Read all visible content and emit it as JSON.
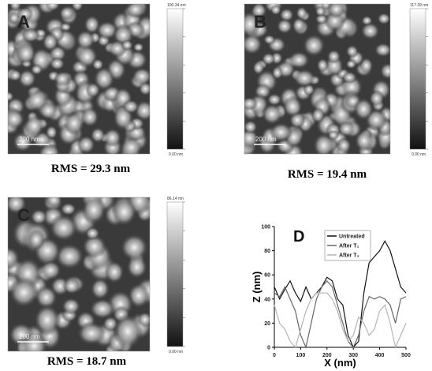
{
  "panels": [
    {
      "label": "A",
      "scale_bar": "200 nm",
      "colorbar_max": "100.34 nm",
      "colorbar_min": "0.00 nm",
      "rms": "RMS = 29.3 nm"
    },
    {
      "label": "B",
      "scale_bar": "200 nm",
      "colorbar_max": "117.39 nm",
      "colorbar_min": "0.00 nm",
      "rms": "RMS = 19.4 nm"
    },
    {
      "label": "C",
      "scale_bar": "200 nm",
      "colorbar_max": "86.14 nm",
      "colorbar_min": "0.00 nm",
      "rms": "RMS = 18.7 nm"
    }
  ],
  "chart_data": {
    "type": "line",
    "label": "D",
    "xlabel": "X (nm)",
    "ylabel": "Z (nm)",
    "x": [
      0,
      20,
      40,
      60,
      80,
      100,
      120,
      140,
      160,
      180,
      200,
      220,
      240,
      260,
      280,
      300,
      320,
      340,
      360,
      380,
      400,
      420,
      440,
      460,
      480,
      500
    ],
    "series": [
      {
        "name": "Untreated",
        "color": "#111111",
        "values": [
          50,
          40,
          48,
          55,
          45,
          38,
          50,
          40,
          45,
          50,
          58,
          55,
          40,
          35,
          10,
          0,
          5,
          45,
          70,
          75,
          80,
          88,
          80,
          65,
          50,
          45
        ]
      },
      {
        "name": "After T₂",
        "color": "#666666",
        "values": [
          45,
          42,
          50,
          40,
          30,
          10,
          0,
          20,
          40,
          50,
          55,
          50,
          35,
          20,
          5,
          0,
          10,
          30,
          42,
          40,
          42,
          40,
          35,
          20,
          40,
          42
        ]
      },
      {
        "name": "After T₃",
        "color": "#b5b5b5",
        "values": [
          35,
          20,
          15,
          5,
          0,
          15,
          30,
          40,
          45,
          45,
          45,
          40,
          30,
          15,
          5,
          10,
          25,
          20,
          10,
          15,
          30,
          35,
          20,
          0,
          10,
          20
        ]
      }
    ],
    "xlim": [
      0,
      500
    ],
    "ylim": [
      0,
      100
    ],
    "xticks": [
      0,
      100,
      200,
      300,
      400,
      500
    ],
    "yticks": [
      0,
      20,
      40,
      60,
      80,
      100
    ],
    "legend": "upper right"
  }
}
